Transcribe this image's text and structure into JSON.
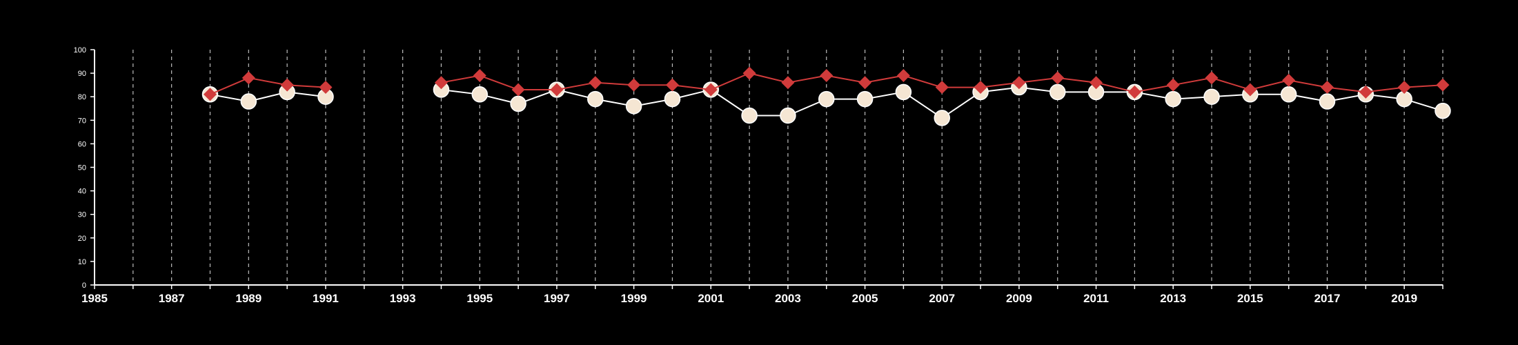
{
  "chart_data": {
    "type": "line",
    "title": "",
    "xlabel": "",
    "ylabel": "",
    "xlim": [
      1985,
      2020
    ],
    "ylim": [
      0,
      100
    ],
    "x_ticks": [
      1985,
      1987,
      1989,
      1991,
      1993,
      1995,
      1997,
      1999,
      2001,
      2003,
      2005,
      2007,
      2009,
      2011,
      2013,
      2015,
      2017,
      2019
    ],
    "y_ticks": [
      0,
      10,
      20,
      30,
      40,
      50,
      60,
      70,
      80,
      90,
      100
    ],
    "grid": "vertical dashed at every year",
    "legend": "none",
    "x": [
      1988,
      1989,
      1990,
      1991,
      1994,
      1995,
      1996,
      1997,
      1998,
      1999,
      2000,
      2001,
      2002,
      2003,
      2004,
      2005,
      2006,
      2007,
      2008,
      2009,
      2010,
      2011,
      2012,
      2013,
      2014,
      2015,
      2016,
      2017,
      2018,
      2019,
      2020
    ],
    "series": [
      {
        "marker": "diamond",
        "color": "#d13b3b",
        "values": [
          81,
          88,
          85,
          84,
          86,
          89,
          83,
          83,
          86,
          85,
          85,
          83,
          90,
          86,
          89,
          86,
          89,
          84,
          84,
          86,
          88,
          86,
          82,
          85,
          88,
          83,
          87,
          84,
          82,
          84,
          85
        ]
      },
      {
        "marker": "circle",
        "color": "#f5e6d3",
        "line_color": "#ffffff",
        "values": [
          81,
          78,
          82,
          80,
          83,
          81,
          77,
          83,
          79,
          76,
          79,
          83,
          72,
          72,
          79,
          79,
          82,
          71,
          82,
          84,
          82,
          82,
          82,
          79,
          80,
          81,
          81,
          78,
          81,
          79,
          74
        ]
      }
    ]
  }
}
